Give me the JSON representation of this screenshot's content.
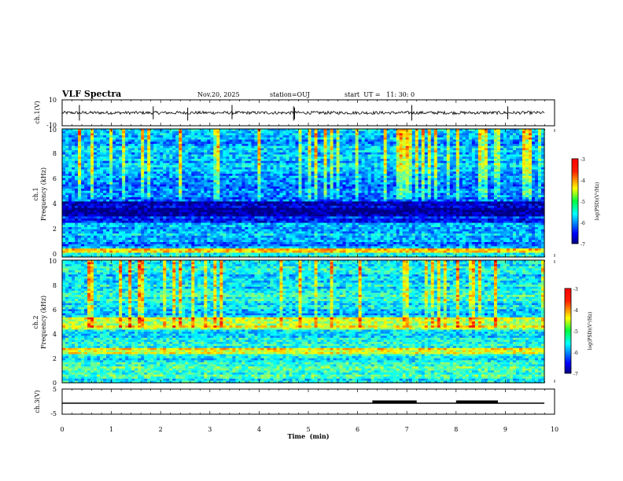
{
  "header": {
    "title": "VLF Spectra",
    "date": "Nov.20, 2025",
    "station": "station=OUJ",
    "start_ut": "start  UT =   11: 30: 0"
  },
  "chart_data": [
    {
      "type": "line",
      "title": "",
      "ylabel": "ch.1(V)",
      "ylim": [
        -10,
        10
      ],
      "yticks": [
        "10",
        "-10"
      ],
      "series": [
        {
          "name": "ch.1 waveform",
          "baseline": 0,
          "spikes_min": [
            0.35,
            1.85,
            2.55,
            3.45,
            4.7,
            4.72,
            7.1,
            9.05
          ]
        }
      ]
    },
    {
      "type": "heatmap",
      "ylabel": "ch.1\nFrequency (kHz)",
      "ylim": [
        0,
        10
      ],
      "yticks": [
        "0",
        "2",
        "4",
        "6",
        "8",
        "10"
      ],
      "colorbar": {
        "label": "log(PSD)(V²/Hz)",
        "min": -7,
        "max": -3,
        "ticks": [
          "-3",
          "-4",
          "-5",
          "-6",
          "-7"
        ]
      }
    },
    {
      "type": "heatmap",
      "ylabel": "ch.2\nFrequency (kHz)",
      "ylim": [
        0,
        10
      ],
      "yticks": [
        "0",
        "2",
        "4",
        "6",
        "8",
        "10"
      ],
      "colorbar": {
        "label": "log(PSD)(V²/Hz)",
        "min": -7,
        "max": -3,
        "ticks": [
          "-3",
          "-4",
          "-5",
          "-6",
          "-7"
        ]
      }
    },
    {
      "type": "line",
      "ylabel": "ch.3(V)",
      "ylim": [
        -5,
        5
      ],
      "yticks": [
        "5",
        "-5"
      ],
      "xlabel": "Time  (min)",
      "xlim": [
        0,
        10
      ],
      "xticks": [
        "0",
        "1",
        "2",
        "3",
        "4",
        "5",
        "6",
        "7",
        "8",
        "9",
        "10"
      ],
      "series": [
        {
          "name": "ch.3",
          "baseline": -2.0,
          "pulses_min": [
            [
              6.3,
              7.2
            ],
            [
              8.0,
              8.85
            ]
          ]
        }
      ]
    }
  ]
}
